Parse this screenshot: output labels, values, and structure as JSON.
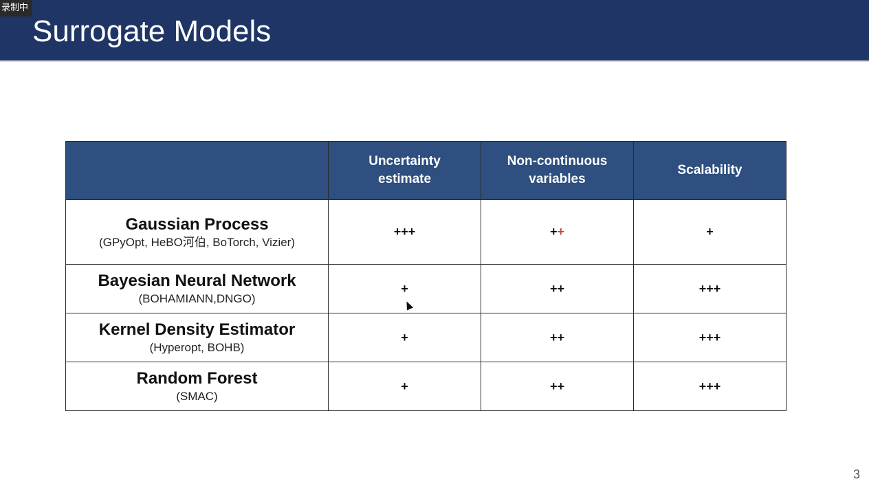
{
  "recording_badge": "录制中",
  "slide": {
    "title": "Surrogate Models",
    "page_number": "3"
  },
  "table": {
    "headers": [
      "",
      "Uncertainty\nestimate",
      "Non-continuous\nvariables",
      "Scalability"
    ],
    "rows": [
      {
        "name": "Gaussian Process",
        "libs": "(GPyOpt, HeBO河伯, BoTorch, Vizier)",
        "uncertainty": "+++",
        "non_continuous_main": "+",
        "non_continuous_accent": "+",
        "scalability": "+"
      },
      {
        "name": "Bayesian Neural Network",
        "libs": "(BOHAMIANN,DNGO)",
        "uncertainty": "+",
        "non_continuous": "++",
        "scalability": "+++"
      },
      {
        "name": "Kernel Density Estimator",
        "libs": "(Hyperopt, BOHB)",
        "uncertainty": "+",
        "non_continuous": "++",
        "scalability": "+++"
      },
      {
        "name": "Random Forest",
        "libs": "(SMAC)",
        "uncertainty": "+",
        "non_continuous": "++",
        "scalability": "+++"
      }
    ]
  },
  "colors": {
    "title_bar": "#1f3566",
    "header_fill": "#2e4f7f",
    "accent_plus": "#b64a4a"
  }
}
